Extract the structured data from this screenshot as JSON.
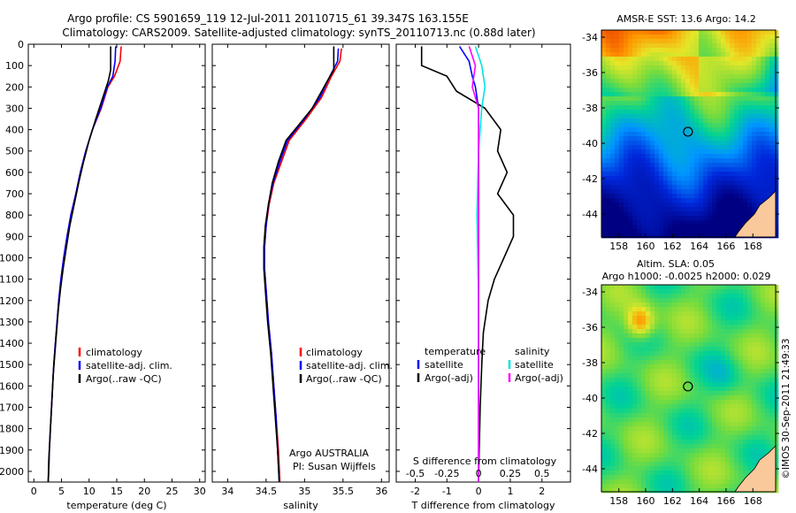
{
  "header": {
    "line1": "Argo profile: CS 5901659_119 12-Jul-2011 20110715_61 39.347S 163.155E",
    "line2": "Climatology: CARS2009. Satellite-adjusted climatology: synTS_20110713.nc (0.88d later)"
  },
  "credit": "©IMOS 30-Sep-2011 21:49:33",
  "colors": {
    "climatology": "#ff0000",
    "satellite": "#0000ff",
    "argo": "#000000",
    "sat_s": "#00e5e5",
    "argo_s": "#ff00ff",
    "land": "#f9c89b"
  },
  "chart_data": [
    {
      "id": "temperature",
      "type": "line",
      "xlabel": "temperature (deg C)",
      "xlim": [
        -1,
        31
      ],
      "ylim": [
        2050,
        0
      ],
      "xticks": [
        0,
        5,
        10,
        15,
        20,
        25,
        30
      ],
      "yticks": [
        0,
        100,
        200,
        300,
        400,
        500,
        600,
        700,
        800,
        900,
        1000,
        1100,
        1200,
        1300,
        1400,
        1500,
        1600,
        1700,
        1800,
        1900,
        2000
      ],
      "legend": [
        "climatology",
        "satellite-adj. clim.",
        "Argo(..raw -QC)"
      ],
      "series": [
        {
          "name": "climatology",
          "color": "#ff0000",
          "points": [
            [
              15.8,
              10
            ],
            [
              15.6,
              80
            ],
            [
              14.6,
              150
            ],
            [
              13.4,
              200
            ],
            [
              12.2,
              300
            ],
            [
              10.6,
              400
            ],
            [
              9.4,
              500
            ],
            [
              8.4,
              600
            ],
            [
              7.6,
              700
            ],
            [
              6.7,
              800
            ],
            [
              6.0,
              900
            ],
            [
              5.4,
              1000
            ],
            [
              4.9,
              1100
            ],
            [
              4.5,
              1200
            ],
            [
              4.2,
              1300
            ],
            [
              3.9,
              1400
            ],
            [
              3.6,
              1500
            ],
            [
              3.4,
              1600
            ],
            [
              3.2,
              1700
            ],
            [
              3.0,
              1800
            ],
            [
              2.8,
              1900
            ],
            [
              2.7,
              2000
            ],
            [
              2.6,
              2050
            ]
          ]
        },
        {
          "name": "satellite-adj. clim.",
          "color": "#0000ff",
          "points": [
            [
              14.8,
              10
            ],
            [
              14.7,
              80
            ],
            [
              14.3,
              150
            ],
            [
              13.3,
              200
            ],
            [
              12.1,
              300
            ],
            [
              10.6,
              400
            ],
            [
              9.4,
              500
            ],
            [
              8.4,
              600
            ],
            [
              7.6,
              700
            ],
            [
              6.7,
              800
            ],
            [
              6.0,
              900
            ],
            [
              5.4,
              1000
            ],
            [
              4.9,
              1100
            ],
            [
              4.5,
              1200
            ],
            [
              4.2,
              1300
            ],
            [
              3.9,
              1400
            ],
            [
              3.6,
              1500
            ],
            [
              3.4,
              1600
            ],
            [
              3.2,
              1700
            ],
            [
              3.0,
              1800
            ],
            [
              2.8,
              1900
            ],
            [
              2.7,
              2000
            ],
            [
              2.6,
              2050
            ]
          ]
        },
        {
          "name": "Argo(..raw -QC)",
          "color": "#000000",
          "points": [
            [
              13.9,
              10
            ],
            [
              13.9,
              120
            ],
            [
              13.5,
              170
            ],
            [
              12.6,
              240
            ],
            [
              11.2,
              350
            ],
            [
              10.0,
              450
            ],
            [
              9.0,
              550
            ],
            [
              8.1,
              650
            ],
            [
              7.3,
              750
            ],
            [
              6.5,
              850
            ],
            [
              5.9,
              950
            ],
            [
              5.3,
              1050
            ],
            [
              4.8,
              1150
            ],
            [
              4.4,
              1250
            ],
            [
              4.1,
              1350
            ],
            [
              3.8,
              1450
            ],
            [
              3.5,
              1550
            ],
            [
              3.3,
              1650
            ],
            [
              3.1,
              1750
            ],
            [
              2.9,
              1850
            ],
            [
              2.7,
              1950
            ],
            [
              2.6,
              2050
            ]
          ]
        }
      ]
    },
    {
      "id": "salinity",
      "type": "line",
      "xlabel": "salinity",
      "xlim": [
        33.8,
        36.1
      ],
      "ylim": [
        2050,
        0
      ],
      "xticks": [
        34,
        34.5,
        35,
        35.5,
        36
      ],
      "legend": [
        "climatology",
        "satellite-adj. clim.",
        "Argo(..raw -QC)"
      ],
      "annotation": [
        "Argo AUSTRALIA",
        "PI: Susan Wijffels"
      ],
      "series": [
        {
          "name": "climatology",
          "color": "#ff0000",
          "points": [
            [
              35.48,
              20
            ],
            [
              35.46,
              80
            ],
            [
              35.35,
              150
            ],
            [
              35.22,
              250
            ],
            [
              35.02,
              350
            ],
            [
              34.8,
              450
            ],
            [
              34.7,
              550
            ],
            [
              34.6,
              650
            ],
            [
              34.54,
              750
            ],
            [
              34.5,
              850
            ],
            [
              34.48,
              950
            ],
            [
              34.48,
              1050
            ],
            [
              34.5,
              1150
            ],
            [
              34.53,
              1300
            ],
            [
              34.57,
              1450
            ],
            [
              34.6,
              1600
            ],
            [
              34.63,
              1750
            ],
            [
              34.66,
              1900
            ],
            [
              34.68,
              2050
            ]
          ]
        },
        {
          "name": "satellite-adj. clim.",
          "color": "#0000ff",
          "points": [
            [
              35.44,
              20
            ],
            [
              35.43,
              80
            ],
            [
              35.33,
              150
            ],
            [
              35.2,
              250
            ],
            [
              35.0,
              350
            ],
            [
              34.78,
              450
            ],
            [
              34.68,
              550
            ],
            [
              34.59,
              650
            ],
            [
              34.53,
              750
            ],
            [
              34.5,
              850
            ],
            [
              34.48,
              950
            ],
            [
              34.48,
              1050
            ],
            [
              34.5,
              1150
            ],
            [
              34.53,
              1300
            ],
            [
              34.57,
              1450
            ],
            [
              34.6,
              1600
            ],
            [
              34.63,
              1750
            ],
            [
              34.65,
              1900
            ],
            [
              34.67,
              2050
            ]
          ]
        },
        {
          "name": "Argo(..raw -QC)",
          "color": "#000000",
          "points": [
            [
              35.38,
              10
            ],
            [
              35.38,
              120
            ],
            [
              35.3,
              170
            ],
            [
              35.1,
              300
            ],
            [
              34.92,
              380
            ],
            [
              34.76,
              450
            ],
            [
              34.66,
              550
            ],
            [
              34.58,
              650
            ],
            [
              34.53,
              750
            ],
            [
              34.49,
              850
            ],
            [
              34.47,
              950
            ],
            [
              34.47,
              1050
            ],
            [
              34.49,
              1150
            ],
            [
              34.52,
              1300
            ],
            [
              34.56,
              1450
            ],
            [
              34.59,
              1600
            ],
            [
              34.62,
              1750
            ],
            [
              34.65,
              1900
            ],
            [
              34.67,
              2050
            ]
          ]
        }
      ]
    },
    {
      "id": "difference",
      "type": "line",
      "xlabel": "T difference from climatology",
      "x2label": "S difference from climatology",
      "xlim": [
        -2.6,
        2.9
      ],
      "ylim": [
        2050,
        0
      ],
      "xticks": [
        -2,
        -1,
        0,
        1,
        2
      ],
      "xticklabels": [
        "-2",
        "-1",
        "0",
        "1",
        "2"
      ],
      "x2ticks": [
        -0.5,
        -0.25,
        0,
        0.25,
        0.5
      ],
      "x2ticklabels": [
        "-0.5",
        "-0.25",
        "0",
        "0.25",
        "0.5"
      ],
      "legend_t_title": "temperature",
      "legend_s_title": "salinity",
      "legend_t": [
        "satellite",
        "Argo(-adj)"
      ],
      "legend_s": [
        "satellite",
        "Argo(-adj)"
      ],
      "series": [
        {
          "name": "T satellite",
          "color": "#0000ff",
          "points": [
            [
              -0.6,
              10
            ],
            [
              -0.3,
              80
            ],
            [
              -0.2,
              150
            ],
            [
              -0.1,
              200
            ],
            [
              0,
              300
            ],
            [
              0,
              2050
            ]
          ]
        },
        {
          "name": "T Argo(-adj)",
          "color": "#000000",
          "points": [
            [
              -1.8,
              10
            ],
            [
              -1.8,
              100
            ],
            [
              -1.0,
              150
            ],
            [
              -0.7,
              220
            ],
            [
              0.2,
              300
            ],
            [
              0.7,
              400
            ],
            [
              0.6,
              500
            ],
            [
              0.9,
              600
            ],
            [
              0.6,
              700
            ],
            [
              1.1,
              800
            ],
            [
              1.1,
              900
            ],
            [
              0.8,
              1000
            ],
            [
              0.5,
              1100
            ],
            [
              0.3,
              1200
            ],
            [
              0.15,
              1350
            ],
            [
              0.1,
              1500
            ],
            [
              0.05,
              1700
            ],
            [
              0.02,
              1900
            ],
            [
              0.0,
              2050
            ]
          ]
        },
        {
          "name": "S satellite",
          "color": "#00e5e5",
          "points": [
            [
              -0.1,
              10
            ],
            [
              0.1,
              100
            ],
            [
              0.2,
              200
            ],
            [
              0.1,
              300
            ],
            [
              0.0,
              500
            ],
            [
              -0.05,
              800
            ],
            [
              0.0,
              1200
            ],
            [
              0.0,
              2050
            ]
          ]
        },
        {
          "name": "S Argo(-adj)",
          "color": "#ff00ff",
          "points": [
            [
              -0.3,
              10
            ],
            [
              -0.1,
              100
            ],
            [
              -0.2,
              200
            ],
            [
              0.0,
              300
            ],
            [
              0.0,
              2050
            ]
          ]
        }
      ]
    },
    {
      "id": "sst_map",
      "type": "heatmap",
      "title": "AMSR-E SST: 13.6  Argo: 14.2",
      "xticks": [
        158,
        160,
        162,
        164,
        166,
        168
      ],
      "yticks": [
        -34,
        -36,
        -38,
        -40,
        -42,
        -44
      ],
      "xlim": [
        156.7,
        169.7
      ],
      "ylim": [
        -45.3,
        -33.6
      ],
      "marker": [
        163.155,
        -39.347
      ]
    },
    {
      "id": "sla_map",
      "type": "heatmap",
      "title_line1": "Altim. SLA: 0.05",
      "title_line2": "Argo h1000: -0.0025  h2000: 0.029",
      "xticks": [
        158,
        160,
        162,
        164,
        166,
        168
      ],
      "yticks": [
        -34,
        -36,
        -38,
        -40,
        -42,
        -44
      ],
      "xlim": [
        156.7,
        169.7
      ],
      "ylim": [
        -45.3,
        -33.6
      ],
      "marker": [
        163.155,
        -39.347
      ]
    }
  ]
}
